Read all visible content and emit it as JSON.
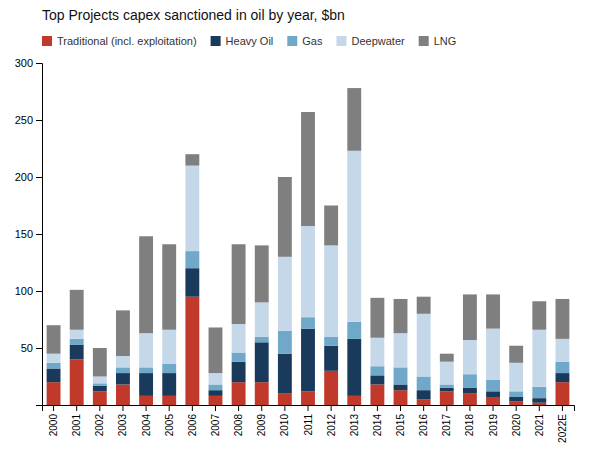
{
  "chart_data": {
    "type": "bar",
    "title": "Top Projects capex sanctioned in oil by year, $bn",
    "categories": [
      "2000",
      "2001",
      "2002",
      "2003",
      "2004",
      "2005",
      "2006",
      "2007",
      "2008",
      "2009",
      "2010",
      "2011",
      "2012",
      "2013",
      "2014",
      "2015",
      "2016",
      "2017",
      "2018",
      "2019",
      "2020",
      "2021",
      "2022E"
    ],
    "series": [
      {
        "name": "Traditional (incl. exploitation)",
        "color": "#c0392b",
        "values": [
          20,
          40,
          12,
          18,
          8,
          8,
          95,
          8,
          20,
          20,
          10,
          12,
          30,
          8,
          18,
          13,
          5,
          12,
          10,
          7,
          3,
          2,
          20
        ]
      },
      {
        "name": "Heavy Oil",
        "color": "#1a3a5c",
        "values": [
          12,
          13,
          5,
          10,
          20,
          20,
          25,
          5,
          18,
          35,
          35,
          55,
          22,
          50,
          8,
          5,
          8,
          3,
          5,
          5,
          4,
          4,
          8
        ]
      },
      {
        "name": "Gas",
        "color": "#6fa8c9",
        "values": [
          5,
          5,
          2,
          5,
          5,
          8,
          15,
          5,
          8,
          5,
          20,
          10,
          8,
          15,
          8,
          15,
          12,
          3,
          12,
          10,
          5,
          10,
          10
        ]
      },
      {
        "name": "Deepwater",
        "color": "#c5d8ea",
        "values": [
          8,
          8,
          6,
          10,
          30,
          30,
          75,
          10,
          25,
          30,
          65,
          80,
          80,
          150,
          25,
          30,
          55,
          20,
          30,
          45,
          25,
          50,
          20
        ]
      },
      {
        "name": "LNG",
        "color": "#7f7f7f",
        "values": [
          25,
          35,
          25,
          40,
          85,
          75,
          10,
          40,
          70,
          50,
          70,
          100,
          35,
          55,
          35,
          30,
          15,
          7,
          40,
          30,
          15,
          25,
          35
        ]
      }
    ],
    "stacked": true,
    "ylim": [
      0,
      300
    ],
    "yticks": [
      50,
      100,
      150,
      200,
      250,
      300
    ],
    "grid": false,
    "legend": "top-left"
  }
}
